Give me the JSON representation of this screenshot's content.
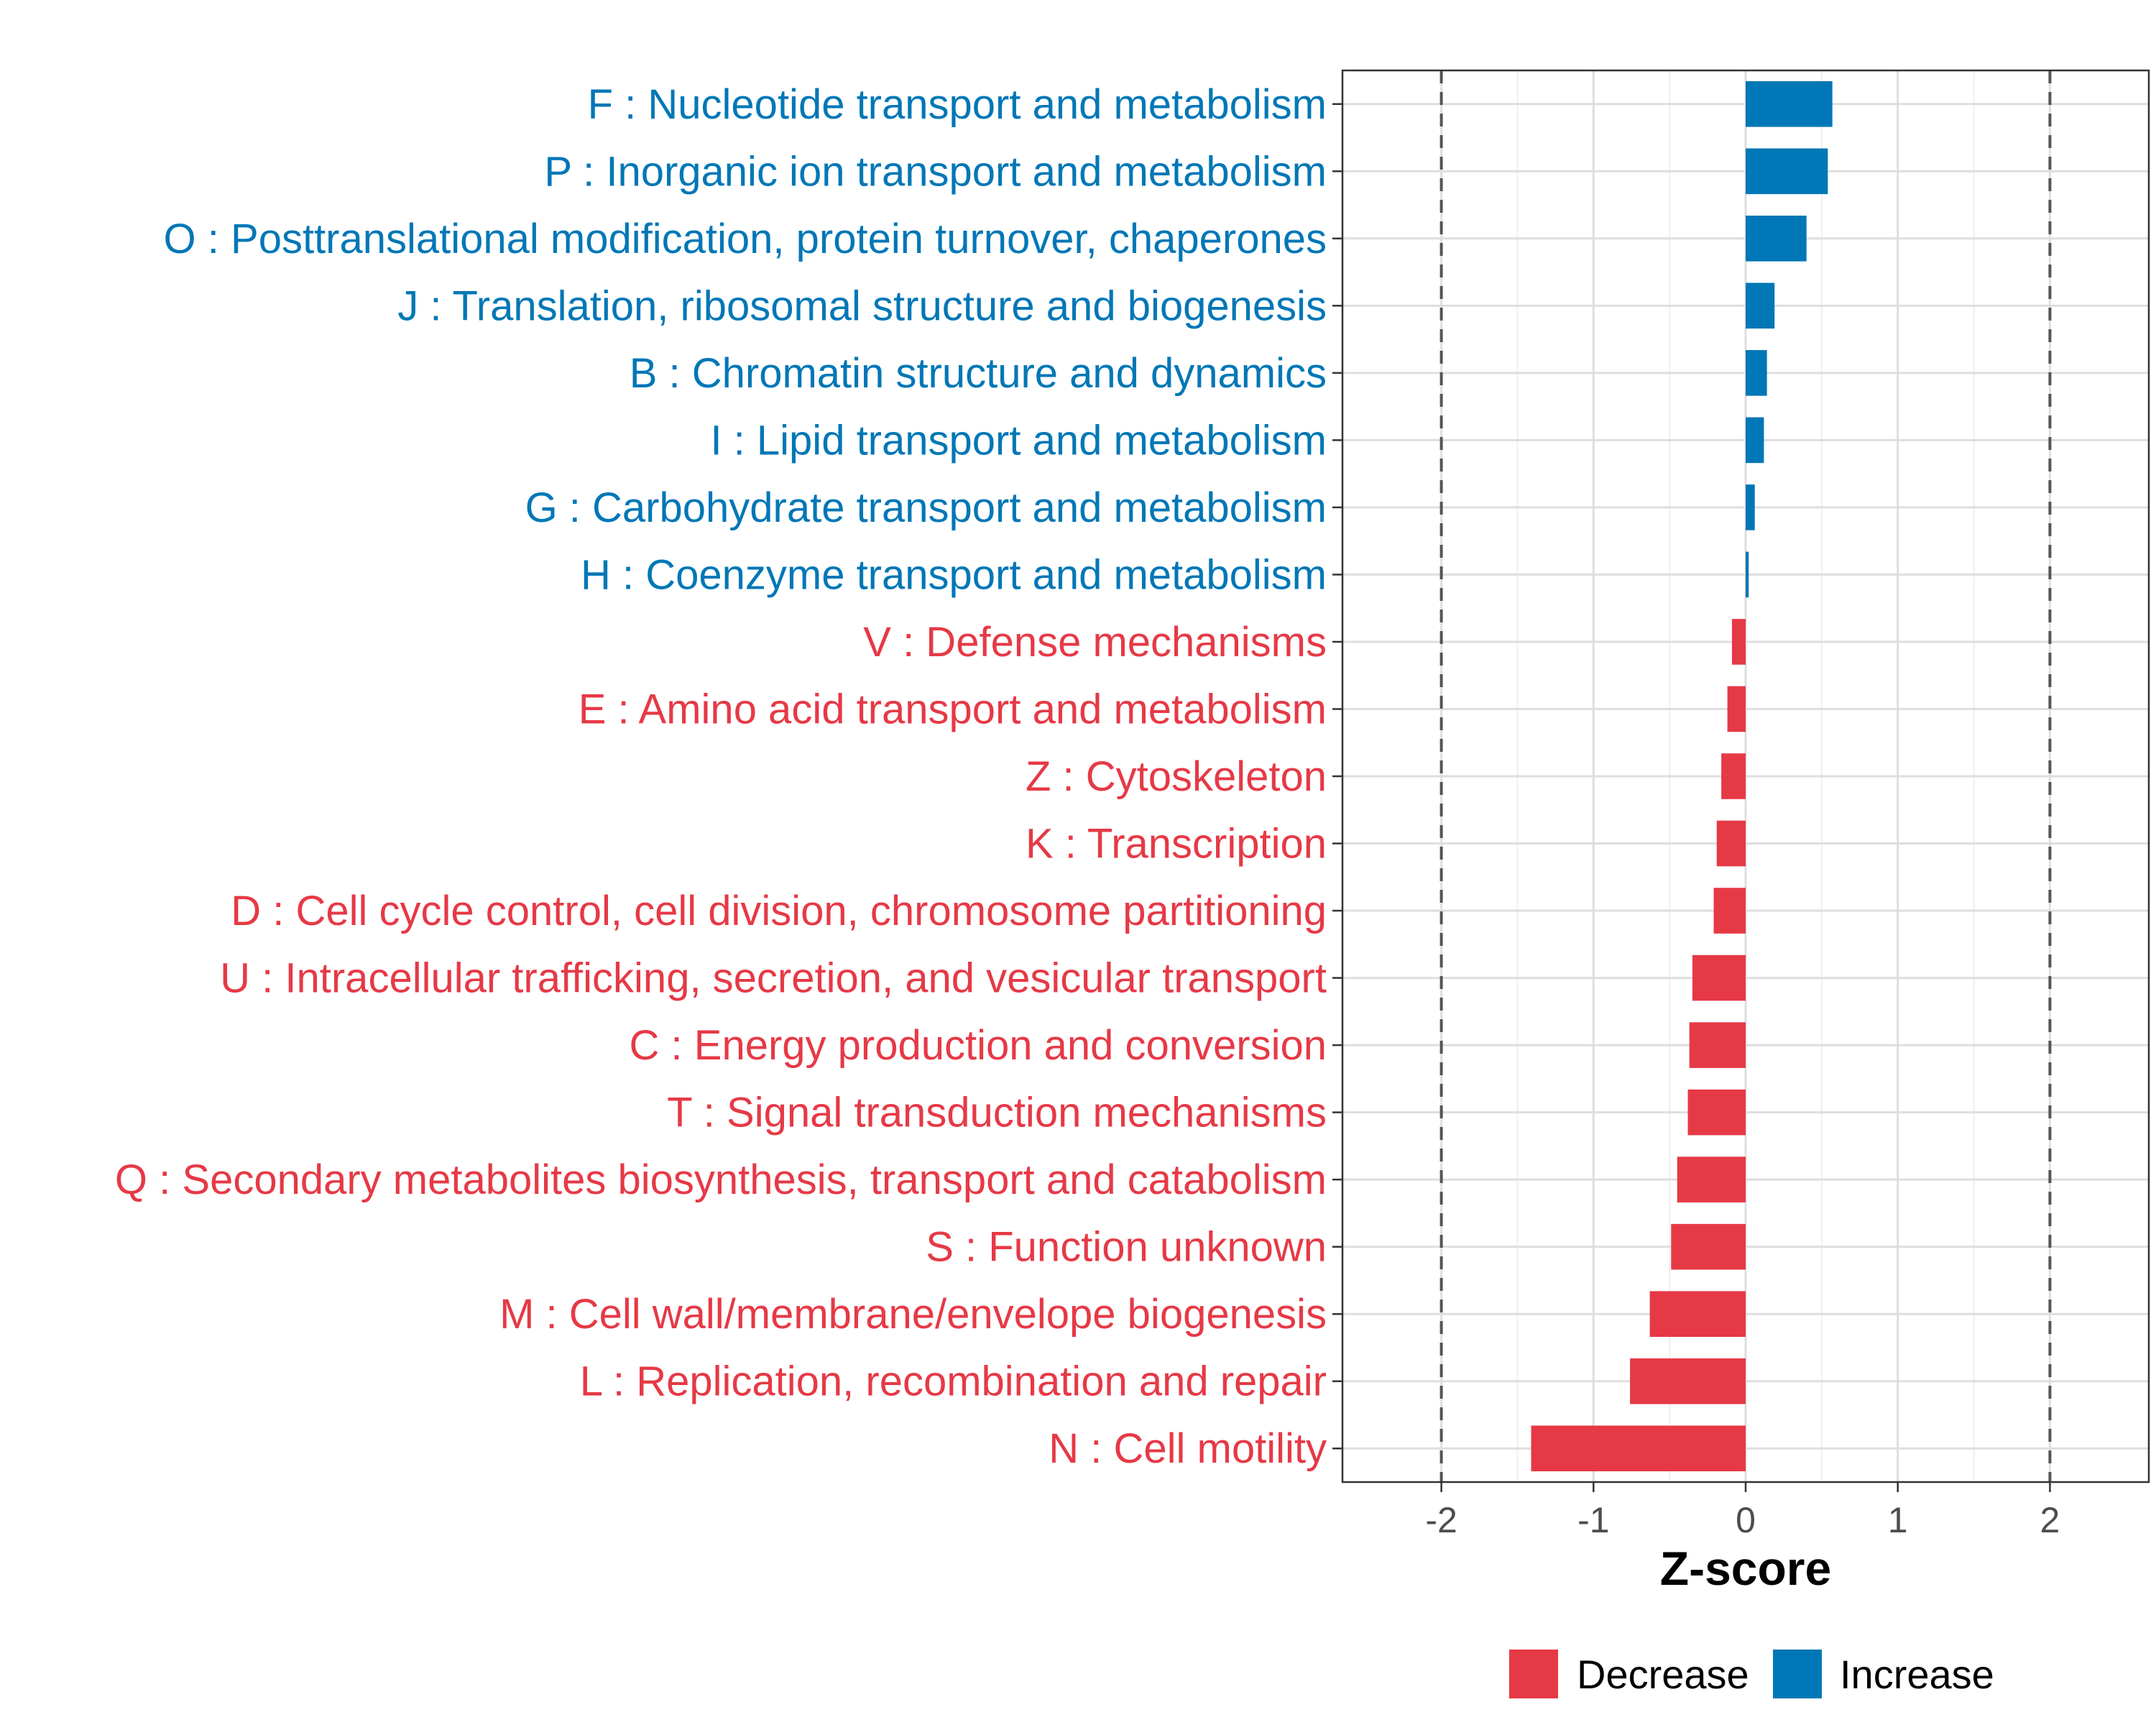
{
  "chart_data": {
    "type": "bar",
    "orientation": "horizontal",
    "xlabel": "Z-score",
    "xlim": [
      -2.65,
      2.65
    ],
    "xticks": [
      -2,
      -1,
      0,
      1,
      2
    ],
    "xtick_labels": [
      "-2",
      "-1",
      "0",
      "1",
      "2"
    ],
    "reference_lines": [
      -2,
      2
    ],
    "grid": true,
    "categories": [
      "F : Nucleotide transport and metabolism",
      "P : Inorganic ion transport and metabolism",
      "O : Posttranslational modification, protein turnover, chaperones",
      "J : Translation, ribosomal structure and biogenesis",
      "B : Chromatin structure and dynamics",
      "I : Lipid transport and metabolism",
      "G : Carbohydrate transport and metabolism",
      "H : Coenzyme transport and metabolism",
      "V : Defense mechanisms",
      "E : Amino acid transport and metabolism",
      "Z : Cytoskeleton",
      "K : Transcription",
      "D : Cell cycle control, cell division, chromosome partitioning",
      "U : Intracellular trafficking, secretion, and vesicular transport",
      "C : Energy production and conversion",
      "T : Signal transduction mechanisms",
      "Q : Secondary metabolites biosynthesis, transport and catabolism",
      "S : Function unknown",
      "M : Cell wall/membrane/envelope biogenesis",
      "L : Replication, recombination and repair",
      "N : Cell motility"
    ],
    "values": [
      0.57,
      0.54,
      0.4,
      0.19,
      0.14,
      0.12,
      0.06,
      0.02,
      -0.09,
      -0.12,
      -0.16,
      -0.19,
      -0.21,
      -0.35,
      -0.37,
      -0.38,
      -0.45,
      -0.49,
      -0.63,
      -0.76,
      -1.41
    ],
    "groups": [
      "Increase",
      "Increase",
      "Increase",
      "Increase",
      "Increase",
      "Increase",
      "Increase",
      "Increase",
      "Decrease",
      "Decrease",
      "Decrease",
      "Decrease",
      "Decrease",
      "Decrease",
      "Decrease",
      "Decrease",
      "Decrease",
      "Decrease",
      "Decrease",
      "Decrease",
      "Decrease"
    ],
    "legend": [
      {
        "name": "Decrease",
        "color": "#e63946"
      },
      {
        "name": "Increase",
        "color": "#0077b6"
      }
    ],
    "legend_position": "bottom"
  }
}
